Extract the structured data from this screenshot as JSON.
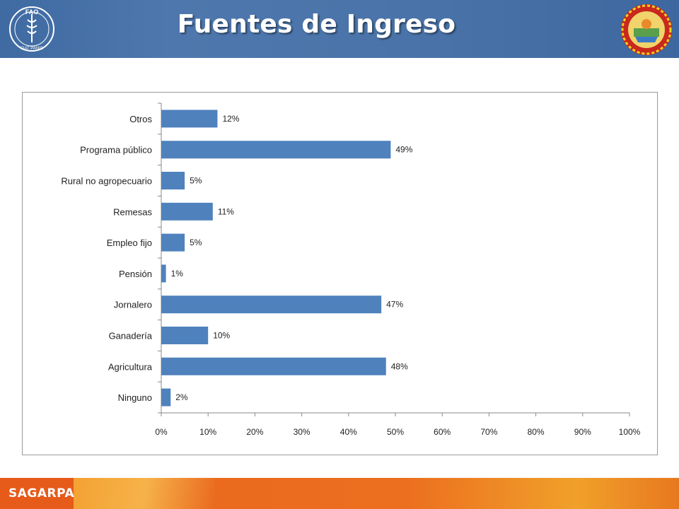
{
  "header": {
    "title": "Fuentes de Ingreso",
    "logo_left": "FAO",
    "logo_left_motto": "FIAT PANIS",
    "seal_icon": "state-seal-icon"
  },
  "footer": {
    "brand": "SAGARPA"
  },
  "colors": {
    "header": "#4a74a9",
    "bar": "#4f81bd",
    "footer": "#e8641d"
  },
  "chart_data": {
    "type": "bar",
    "orientation": "horizontal",
    "title": "",
    "xlabel": "",
    "ylabel": "",
    "categories": [
      "Otros",
      "Programa público",
      "Rural no agropecuario",
      "Remesas",
      "Empleo fijo",
      "Pensión",
      "Jornalero",
      "Ganadería",
      "Agricultura",
      "Ninguno"
    ],
    "values": [
      12,
      49,
      5,
      11,
      5,
      1,
      47,
      10,
      48,
      2
    ],
    "data_labels": [
      "12%",
      "49%",
      "5%",
      "11%",
      "5%",
      "1%",
      "47%",
      "10%",
      "48%",
      "2%"
    ],
    "xlim": [
      0,
      100
    ],
    "x_ticks": [
      "0%",
      "10%",
      "20%",
      "30%",
      "40%",
      "50%",
      "60%",
      "70%",
      "80%",
      "90%",
      "100%"
    ],
    "grid": false,
    "legend": "none"
  }
}
